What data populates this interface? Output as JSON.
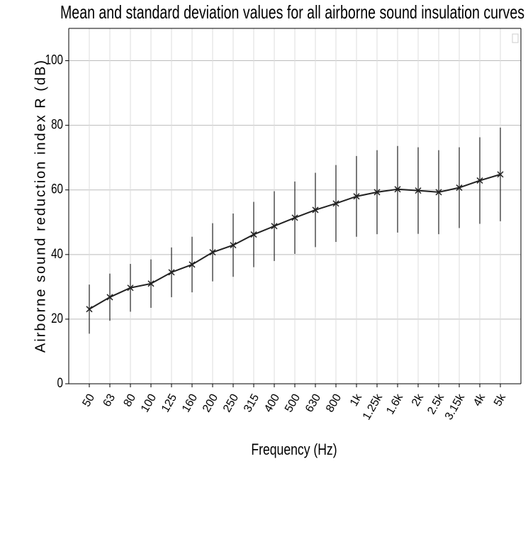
{
  "chart_data": {
    "type": "line",
    "title": "Mean and standard deviation values for all airborne sound insulation curves",
    "x_label": "Frequency (Hz)",
    "y_label": "Airborne sound reduction index R (dB)",
    "categories": [
      "50",
      "63",
      "80",
      "100",
      "125",
      "160",
      "200",
      "250",
      "315",
      "400",
      "500",
      "630",
      "800",
      "1k",
      "1.25k",
      "1.6k",
      "2k",
      "2.5k",
      "3.15k",
      "4k",
      "5k"
    ],
    "values": [
      23.1,
      26.8,
      29.7,
      31,
      34.5,
      36.9,
      40.7,
      42.9,
      46.2,
      48.8,
      51.4,
      53.8,
      55.8,
      58,
      59.3,
      60.2,
      59.8,
      59.3,
      60.7,
      62.9,
      64.8
    ],
    "errors": [
      7.6,
      7.3,
      7.4,
      7.5,
      7.7,
      8.6,
      9,
      9.8,
      10.1,
      10.8,
      11.2,
      11.5,
      11.9,
      12.5,
      13,
      13.4,
      13.4,
      13,
      12.5,
      13.4,
      14.5
    ],
    "color": "#222222",
    "ylim": [
      0,
      110
    ],
    "yticks": [
      0,
      20,
      40,
      60,
      80,
      100
    ],
    "grid": true
  }
}
